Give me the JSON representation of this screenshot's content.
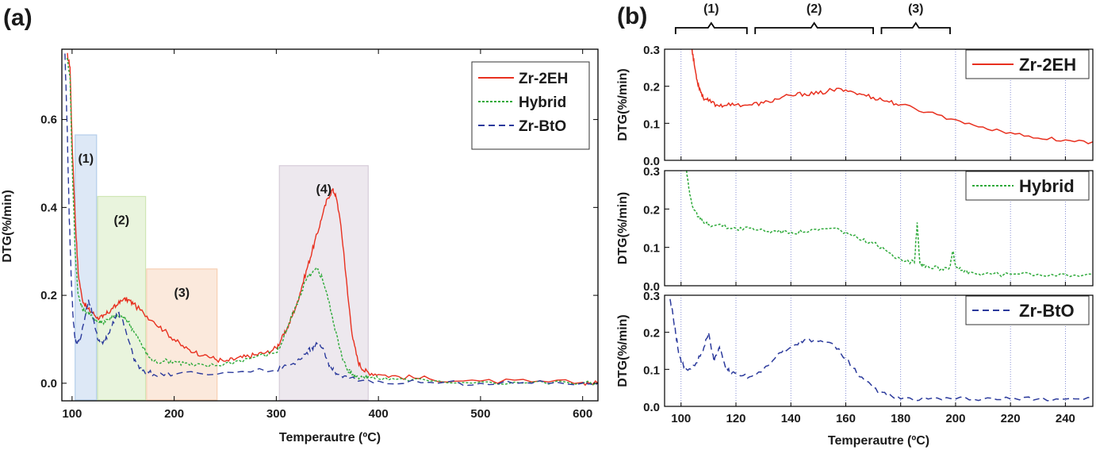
{
  "chart_data": [
    {
      "type": "line",
      "panel_label": "(a)",
      "xlabel": "Temperautre (ºC)",
      "ylabel": "DTG(%/min)",
      "xlim": [
        90,
        615
      ],
      "ylim": [
        -0.04,
        0.76
      ],
      "xticks": [
        100,
        200,
        300,
        400,
        500,
        600
      ],
      "xtick_labels": [
        "100",
        "200",
        "300",
        "400",
        "500",
        "600"
      ],
      "yticks": [
        0.0,
        0.2,
        0.4,
        0.6
      ],
      "ytick_labels": [
        "0.0",
        "0.2",
        "0.4",
        "0.6"
      ],
      "legend_position": "top-right",
      "series": [
        {
          "name": "Zr-2EH",
          "color": "#e8301f",
          "style": "solid",
          "x": [
            95,
            98,
            100,
            103,
            106,
            110,
            115,
            120,
            125,
            130,
            135,
            140,
            145,
            150,
            155,
            160,
            170,
            180,
            190,
            200,
            210,
            220,
            230,
            240,
            250,
            260,
            270,
            280,
            290,
            300,
            305,
            310,
            315,
            320,
            325,
            330,
            335,
            340,
            345,
            350,
            355,
            358,
            362,
            366,
            370,
            375,
            380,
            385,
            390,
            400,
            420,
            450,
            500,
            550,
            600,
            615
          ],
          "y": [
            0.75,
            0.72,
            0.55,
            0.38,
            0.25,
            0.19,
            0.17,
            0.16,
            0.15,
            0.15,
            0.16,
            0.17,
            0.18,
            0.19,
            0.19,
            0.18,
            0.16,
            0.14,
            0.12,
            0.1,
            0.08,
            0.07,
            0.065,
            0.055,
            0.05,
            0.055,
            0.06,
            0.065,
            0.07,
            0.08,
            0.1,
            0.12,
            0.15,
            0.18,
            0.22,
            0.26,
            0.3,
            0.34,
            0.38,
            0.42,
            0.44,
            0.43,
            0.38,
            0.3,
            0.2,
            0.1,
            0.05,
            0.03,
            0.025,
            0.02,
            0.015,
            0.01,
            0.005,
            0.003,
            0.002,
            0.0
          ]
        },
        {
          "name": "Hybrid",
          "color": "#2eaa3a",
          "style": "dotted",
          "x": [
            95,
            98,
            100,
            103,
            106,
            110,
            115,
            120,
            125,
            130,
            135,
            140,
            145,
            150,
            155,
            160,
            165,
            170,
            175,
            180,
            190,
            200,
            210,
            220,
            240,
            260,
            280,
            300,
            305,
            310,
            315,
            320,
            325,
            330,
            335,
            340,
            345,
            350,
            355,
            358,
            362,
            366,
            370,
            375,
            380,
            385,
            390,
            400,
            420,
            450,
            500,
            550,
            600,
            615
          ],
          "y": [
            0.74,
            0.7,
            0.5,
            0.3,
            0.2,
            0.17,
            0.16,
            0.15,
            0.14,
            0.14,
            0.145,
            0.15,
            0.155,
            0.15,
            0.14,
            0.12,
            0.1,
            0.08,
            0.06,
            0.05,
            0.05,
            0.05,
            0.045,
            0.04,
            0.04,
            0.05,
            0.06,
            0.07,
            0.09,
            0.12,
            0.15,
            0.18,
            0.21,
            0.24,
            0.25,
            0.26,
            0.24,
            0.2,
            0.15,
            0.12,
            0.08,
            0.05,
            0.03,
            0.02,
            0.015,
            0.015,
            0.015,
            0.01,
            0.01,
            0.005,
            0.003,
            0.002,
            0.0,
            0.0
          ]
        },
        {
          "name": "Zr-BtO",
          "color": "#2b3a9c",
          "style": "dashed",
          "x": [
            93,
            95,
            97,
            99,
            101,
            103,
            105,
            108,
            112,
            116,
            120,
            125,
            130,
            135,
            140,
            145,
            150,
            155,
            160,
            165,
            170,
            180,
            200,
            250,
            300,
            310,
            320,
            330,
            335,
            340,
            345,
            350,
            355,
            360,
            370,
            400,
            450,
            500,
            550,
            600,
            615
          ],
          "y": [
            0.75,
            0.6,
            0.4,
            0.25,
            0.15,
            0.1,
            0.09,
            0.1,
            0.14,
            0.19,
            0.16,
            0.1,
            0.09,
            0.11,
            0.14,
            0.16,
            0.14,
            0.1,
            0.06,
            0.04,
            0.03,
            0.02,
            0.02,
            0.025,
            0.03,
            0.04,
            0.05,
            0.07,
            0.08,
            0.09,
            0.08,
            0.05,
            0.03,
            0.02,
            0.01,
            0.005,
            0.002,
            0.0,
            0.0,
            0.0,
            0.0
          ]
        }
      ],
      "regions": [
        {
          "label": "(1)",
          "x0": 103,
          "x1": 124,
          "ytop": 0.565,
          "color": "#b3cdea"
        },
        {
          "label": "(2)",
          "x0": 125,
          "x1": 172,
          "ytop": 0.425,
          "color": "#cfe6b4"
        },
        {
          "label": "(3)",
          "x0": 173,
          "x1": 242,
          "ytop": 0.26,
          "color": "#f7cfb2"
        },
        {
          "label": "(4)",
          "x0": 303,
          "x1": 390,
          "ytop": 0.495,
          "color": "#d6ccd9"
        }
      ]
    },
    {
      "type": "line",
      "panel_label": "(b)",
      "xlabel": "Temperautre (ºC)",
      "xlim": [
        94,
        250
      ],
      "xticks": [
        100,
        120,
        140,
        160,
        180,
        200,
        220,
        240
      ],
      "xtick_labels": [
        "100",
        "120",
        "140",
        "160",
        "180",
        "200",
        "220",
        "240"
      ],
      "range_labels": [
        {
          "label": "(1)",
          "x0": 98,
          "x1": 124
        },
        {
          "label": "(2)",
          "x0": 127,
          "x1": 170
        },
        {
          "label": "(3)",
          "x0": 173,
          "x1": 198
        }
      ],
      "subplots": [
        {
          "name": "Zr-2EH",
          "color": "#e8301f",
          "style": "solid",
          "ylabel": "DTG(%/min)",
          "ylim": [
            0.0,
            0.3
          ],
          "yticks": [
            0.0,
            0.1,
            0.2,
            0.3
          ],
          "ytick_labels": [
            "0.0",
            "0.1",
            "0.2",
            "0.3"
          ],
          "x": [
            104,
            105,
            106,
            107,
            108,
            110,
            113,
            116,
            120,
            125,
            130,
            135,
            140,
            145,
            150,
            155,
            160,
            165,
            170,
            175,
            180,
            190,
            200,
            210,
            220,
            230,
            240,
            250
          ],
          "y": [
            0.3,
            0.25,
            0.21,
            0.19,
            0.17,
            0.16,
            0.15,
            0.148,
            0.15,
            0.15,
            0.155,
            0.165,
            0.175,
            0.18,
            0.18,
            0.19,
            0.19,
            0.18,
            0.17,
            0.16,
            0.15,
            0.13,
            0.11,
            0.09,
            0.075,
            0.06,
            0.055,
            0.05
          ]
        },
        {
          "name": "Hybrid",
          "color": "#2eaa3a",
          "style": "dotted",
          "ylabel": "DTG(%/min)",
          "ylim": [
            0.0,
            0.3
          ],
          "yticks": [
            0.0,
            0.1,
            0.2,
            0.3
          ],
          "ytick_labels": [
            "0.0",
            "0.1",
            "0.2",
            "0.3"
          ],
          "x": [
            102,
            103,
            104,
            106,
            108,
            110,
            115,
            120,
            125,
            130,
            135,
            140,
            145,
            150,
            155,
            160,
            165,
            170,
            175,
            180,
            185,
            186,
            187,
            188,
            190,
            195,
            198,
            199,
            200,
            202,
            205,
            210,
            220,
            230,
            240,
            250
          ],
          "y": [
            0.3,
            0.25,
            0.21,
            0.18,
            0.17,
            0.16,
            0.155,
            0.15,
            0.15,
            0.145,
            0.14,
            0.14,
            0.14,
            0.145,
            0.15,
            0.14,
            0.12,
            0.11,
            0.09,
            0.07,
            0.06,
            0.165,
            0.06,
            0.055,
            0.05,
            0.045,
            0.05,
            0.09,
            0.05,
            0.04,
            0.035,
            0.03,
            0.03,
            0.03,
            0.03,
            0.03
          ]
        },
        {
          "name": "Zr-BtO",
          "color": "#2b3a9c",
          "style": "dashed",
          "ylabel": "DTG(%/min)",
          "ylim": [
            0.0,
            0.3
          ],
          "yticks": [
            0.0,
            0.1,
            0.2,
            0.3
          ],
          "ytick_labels": [
            "0.0",
            "0.1",
            "0.2",
            "0.3"
          ],
          "x": [
            96,
            97,
            98,
            99,
            100,
            102,
            105,
            108,
            110,
            112,
            114,
            116,
            118,
            120,
            125,
            130,
            135,
            140,
            145,
            150,
            155,
            160,
            165,
            170,
            175,
            180,
            190,
            200,
            210,
            220,
            230,
            240,
            250
          ],
          "y": [
            0.29,
            0.25,
            0.2,
            0.15,
            0.12,
            0.1,
            0.11,
            0.15,
            0.2,
            0.12,
            0.16,
            0.11,
            0.09,
            0.09,
            0.08,
            0.1,
            0.14,
            0.16,
            0.18,
            0.175,
            0.17,
            0.13,
            0.08,
            0.05,
            0.03,
            0.02,
            0.02,
            0.02,
            0.02,
            0.02,
            0.02,
            0.02,
            0.02
          ]
        }
      ]
    }
  ]
}
